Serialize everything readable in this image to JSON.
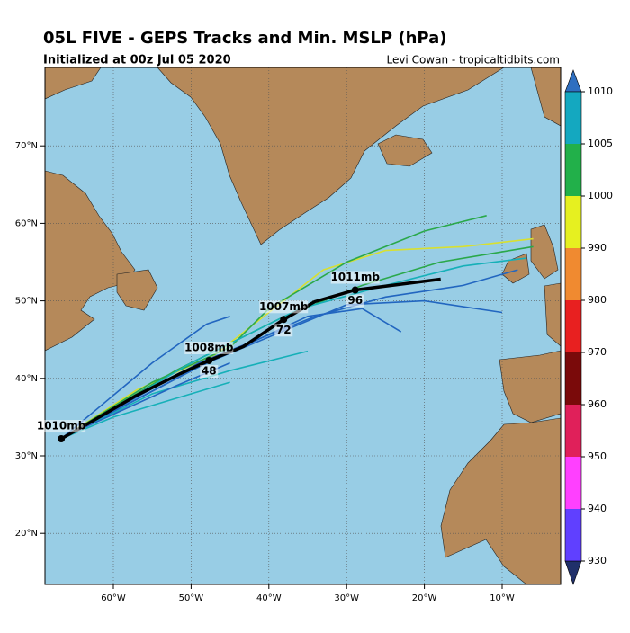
{
  "header": {
    "title": "05L FIVE - GEPS Tracks and Min. MSLP (hPa)",
    "subtitle": "Initialized at 00z Jul 05 2020",
    "credit": "Levi Cowan - tropicaltidbits.com"
  },
  "map": {
    "lon_ticks": [
      {
        "value": -60,
        "label": "60°W"
      },
      {
        "value": -50,
        "label": "50°W"
      },
      {
        "value": -40,
        "label": "40°W"
      },
      {
        "value": -30,
        "label": "30°W"
      },
      {
        "value": -20,
        "label": "20°W"
      },
      {
        "value": -10,
        "label": "10°W"
      }
    ],
    "lat_ticks": [
      {
        "value": 70,
        "label": "70°N"
      },
      {
        "value": 60,
        "label": "60°N"
      },
      {
        "value": 50,
        "label": "50°N"
      },
      {
        "value": 40,
        "label": "40°N"
      },
      {
        "value": 30,
        "label": "30°N"
      },
      {
        "value": 20,
        "label": "20°N"
      }
    ],
    "members": [
      {
        "color": "#d8e030",
        "lon": [
          -66.7,
          -57,
          -47,
          -40,
          -33,
          -25,
          -15,
          -6
        ],
        "lat": [
          32.2,
          38.5,
          43,
          48.5,
          54,
          56.5,
          57,
          58
        ]
      },
      {
        "color": "#2aa84a",
        "lon": [
          -66.7,
          -55,
          -45,
          -40,
          -30,
          -20,
          -12
        ],
        "lat": [
          32.2,
          39.5,
          44,
          49,
          55,
          59,
          61
        ]
      },
      {
        "color": "#2aa84a",
        "lon": [
          -66.7,
          -52,
          -38,
          -28,
          -18,
          -6
        ],
        "lat": [
          32.2,
          41,
          48,
          52,
          55,
          57
        ]
      },
      {
        "color": "#16b0b8",
        "lon": [
          -66.7,
          -50,
          -36,
          -25,
          -15,
          -7
        ],
        "lat": [
          32.2,
          42,
          49,
          52,
          54.5,
          55.5
        ]
      },
      {
        "color": "#2266c0",
        "lon": [
          -66.7,
          -49,
          -34,
          -25,
          -15,
          -8
        ],
        "lat": [
          32.2,
          42,
          48,
          50.5,
          52,
          54
        ]
      },
      {
        "color": "#2266c0",
        "lon": [
          -66.7,
          -48,
          -30,
          -20,
          -10
        ],
        "lat": [
          32.2,
          42,
          49.5,
          50,
          48.5
        ]
      },
      {
        "color": "#2266c0",
        "lon": [
          -66.7,
          -50,
          -35,
          -28,
          -23
        ],
        "lat": [
          32.2,
          41,
          48,
          49,
          46
        ]
      },
      {
        "color": "#16b0b8",
        "lon": [
          -66.7,
          -55,
          -45,
          -35
        ],
        "lat": [
          32.2,
          38,
          41,
          43.5
        ]
      },
      {
        "color": "#16b0b8",
        "lon": [
          -66.7,
          -60,
          -50,
          -45
        ],
        "lat": [
          32.2,
          35,
          38,
          39.5
        ]
      },
      {
        "color": "#2266c0",
        "lon": [
          -66.7,
          -63,
          -52,
          -45
        ],
        "lat": [
          32.2,
          34,
          39,
          42
        ]
      },
      {
        "color": "#2266c0",
        "lon": [
          -66.7,
          -55,
          -48,
          -45
        ],
        "lat": [
          32.2,
          42,
          47,
          48
        ]
      }
    ],
    "mean_track": {
      "color": "#000000",
      "lon": [
        -66.7,
        -63,
        -57.2,
        -51.4,
        -47.7,
        -43.3,
        -38.1,
        -34.1,
        -28.9,
        -17.9
      ],
      "lat": [
        32.2,
        34.3,
        37.7,
        40.6,
        42.3,
        44.1,
        47.6,
        49.9,
        51.4,
        52.8
      ],
      "pressure_labels": [
        "1010mb",
        null,
        null,
        null,
        "1008mb",
        null,
        "1007mb",
        null,
        "1011mb",
        null
      ],
      "hour_labels": [
        null,
        null,
        null,
        null,
        "48",
        null,
        "72",
        null,
        "96",
        null
      ]
    }
  },
  "colorbar": {
    "levels": [
      1010,
      1005,
      1000,
      990,
      980,
      970,
      960,
      950,
      940,
      930
    ],
    "band_colors": [
      "#14a8c0",
      "#22b04a",
      "#e6f020",
      "#f08a30",
      "#e82020",
      "#7a0a0a",
      "#e0205a",
      "#ff40ff",
      "#6040ff"
    ],
    "over_color": "#2f6fc0",
    "under_color": "#20306a"
  }
}
